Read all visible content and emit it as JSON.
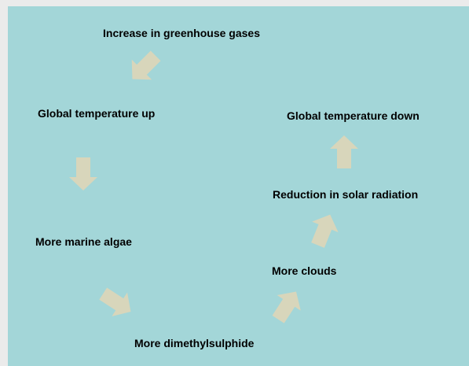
{
  "diagram": {
    "nodes": [
      {
        "id": "greenhouse",
        "label": "Increase in greenhouse gases"
      },
      {
        "id": "temp_up",
        "label": "Global temperature up"
      },
      {
        "id": "algae",
        "label": "More marine algae"
      },
      {
        "id": "dms",
        "label": "More dimethylsulphide"
      },
      {
        "id": "clouds",
        "label": "More clouds"
      },
      {
        "id": "solar",
        "label": "Reduction in solar radiation"
      },
      {
        "id": "temp_down",
        "label": "Global temperature down"
      }
    ],
    "edges": [
      {
        "from": "greenhouse",
        "to": "temp_up"
      },
      {
        "from": "temp_up",
        "to": "algae"
      },
      {
        "from": "algae",
        "to": "dms"
      },
      {
        "from": "dms",
        "to": "clouds"
      },
      {
        "from": "clouds",
        "to": "solar"
      },
      {
        "from": "solar",
        "to": "temp_down"
      }
    ],
    "colors": {
      "background": "#a3d6d8",
      "arrow": "#d8d6bb",
      "frame": "#ebebeb",
      "text": "#000000"
    }
  }
}
